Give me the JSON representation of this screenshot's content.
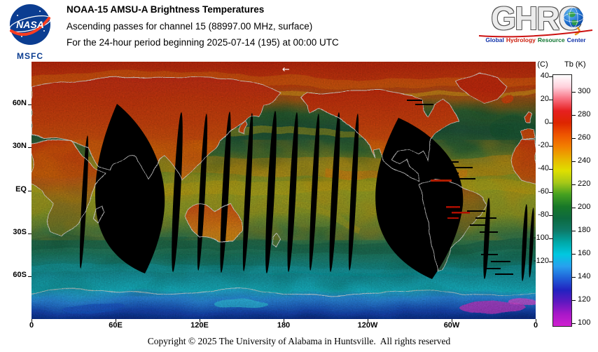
{
  "header": {
    "nasa": {
      "wordmark": "NASA",
      "center": "MSFC"
    },
    "title": "NOAA-15 AMSU-A Brightness Temperatures",
    "line2": "Ascending passes for channel 15 (88997.00 MHz, surface)",
    "line3": "For the 24-hour period beginning 2025-07-14 (195) at 00:00 UTC",
    "ghrc": {
      "letters": [
        "G",
        "H",
        "R",
        "C"
      ],
      "tagline": [
        {
          "text": "Global",
          "color": "#1133aa"
        },
        {
          "text": "Hydrology",
          "color": "#cc2211"
        },
        {
          "text": "Resource",
          "color": "#117733"
        },
        {
          "text": "Center",
          "color": "#1133aa"
        }
      ]
    }
  },
  "map": {
    "annotation_arrow": "←",
    "lat_ticks": [
      {
        "label": "60N",
        "lat": 60
      },
      {
        "label": "30N",
        "lat": 30
      },
      {
        "label": "EQ",
        "lat": 0
      },
      {
        "label": "30S",
        "lat": -30
      },
      {
        "label": "60S",
        "lat": -60
      }
    ],
    "lon_ticks": [
      {
        "label": "0",
        "lon": 0
      },
      {
        "label": "60E",
        "lon": 60
      },
      {
        "label": "120E",
        "lon": 120
      },
      {
        "label": "180",
        "lon": 180
      },
      {
        "label": "120W",
        "lon": 240
      },
      {
        "label": "60W",
        "lon": 300
      },
      {
        "label": "0",
        "lon": 360
      }
    ]
  },
  "colorbar": {
    "unit_left": "(C)",
    "unit_right": "Tb (K)",
    "celsius_ticks": [
      40,
      20,
      0,
      -20,
      -40,
      -60,
      -80,
      -100,
      -120
    ],
    "kelvin_ticks": [
      300,
      280,
      260,
      240,
      220,
      200,
      180,
      160,
      140,
      120,
      100
    ],
    "scale": {
      "top_kelvin": 315,
      "bottom_kelvin": 98
    },
    "colors_top_to_bottom": [
      "#ffffff",
      "#ffd0dc",
      "#f87080",
      "#e62020",
      "#dd2500",
      "#ee5500",
      "#f28000",
      "#e8b400",
      "#dfdf00",
      "#a6c818",
      "#45a020",
      "#187828",
      "#0d6a40",
      "#0e7a68",
      "#00a8a8",
      "#00c8e0",
      "#28a0ee",
      "#2060d8",
      "#2222c0",
      "#6018c0",
      "#a818c8",
      "#d020d0"
    ]
  },
  "footer": {
    "copyright": "Copyright © 2025 The University of Alabama in Huntsville.  All rights reserved"
  }
}
